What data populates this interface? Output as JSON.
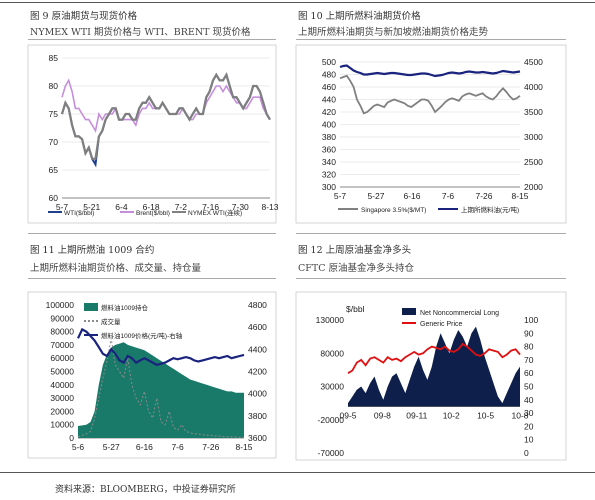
{
  "figures": [
    {
      "title": "图 9  原油期货与现货价格",
      "subtitle": "NYMEX WTI 期货价格与 WTI、BRENT 现货价格"
    },
    {
      "title": "图 10  上期所燃料油期货价格",
      "subtitle": "上期所燃料油期货与新加坡燃油期货价格走势"
    },
    {
      "title": "图 11  上期所燃油 1009 合约",
      "subtitle": "上期所燃料油期货价格、成交量、持仓量"
    },
    {
      "title": "图 12  上周原油基金净多头",
      "subtitle": "CFTC  原油基金净多头持仓"
    }
  ],
  "footer": "资料来源：BLOOMBERG，中投证券研究所",
  "chart_data": [
    {
      "type": "line",
      "ylim": [
        60,
        85
      ],
      "yticks": [
        60,
        65,
        70,
        75,
        80,
        85
      ],
      "xticks": [
        "5-7",
        "5-21",
        "6-4",
        "6-18",
        "7-2",
        "7-16",
        "7-30",
        "8-13"
      ],
      "grid": true,
      "legend": "bottom",
      "colors": [
        "#1f3f8f",
        "#c58fdc",
        "#7f7f7f"
      ],
      "series": [
        {
          "name": "WTI($/bbl)",
          "values": [
            75,
            77,
            76,
            73,
            71,
            71,
            70.5,
            68,
            69,
            67,
            66,
            71,
            72,
            74,
            75,
            76,
            76,
            74,
            74,
            75,
            75,
            74,
            74,
            76,
            77,
            77,
            78,
            77,
            76,
            76,
            77,
            76,
            75,
            75,
            75,
            76,
            76,
            75,
            74,
            75,
            76,
            75,
            75,
            78,
            79,
            81,
            82,
            81,
            81,
            82,
            80,
            78,
            78,
            77,
            76,
            77,
            78,
            80,
            80,
            79,
            77,
            75,
            74
          ]
        },
        {
          "name": "Brent($/bbl)",
          "values": [
            78,
            80,
            81,
            79,
            76,
            76,
            75,
            74,
            74,
            73,
            72,
            75,
            74,
            75,
            75,
            75,
            76,
            74,
            74,
            74,
            74,
            74,
            73,
            75,
            76,
            76,
            77,
            76,
            76,
            76,
            77,
            76,
            75,
            75,
            75,
            75,
            76,
            75,
            74,
            74,
            75,
            75,
            75,
            77,
            78,
            79,
            80,
            80,
            79,
            80,
            79,
            78,
            77,
            77,
            76,
            76,
            77,
            78,
            78,
            78,
            76,
            75,
            74
          ]
        },
        {
          "name": "NYMEX WTI(连续)",
          "values": [
            75,
            77,
            76,
            73,
            71,
            71,
            70.5,
            68,
            69,
            67,
            67,
            71,
            72,
            74,
            75,
            76,
            76,
            74,
            74,
            75,
            75,
            74,
            74,
            76,
            77,
            77,
            78,
            77,
            76,
            76,
            77,
            76,
            75,
            75,
            75,
            76,
            76,
            75,
            74,
            75,
            76,
            75,
            75,
            78,
            79,
            81,
            82,
            81,
            81,
            82,
            80,
            78,
            78,
            77,
            76,
            77,
            78,
            80,
            80,
            79,
            77,
            75,
            74
          ]
        }
      ]
    },
    {
      "type": "line",
      "ylim": [
        300,
        500
      ],
      "yticks": [
        300,
        320,
        340,
        360,
        380,
        400,
        420,
        440,
        460,
        480,
        500
      ],
      "y2lim": [
        2000,
        4500
      ],
      "y2ticks": [
        2000,
        2500,
        3000,
        3500,
        4000,
        4500
      ],
      "xticks": [
        "5-7",
        "5-27",
        "6-16",
        "7-6",
        "7-26",
        "8-15"
      ],
      "grid": true,
      "legend": "bottom",
      "colors": [
        "#808080",
        "#1a237e"
      ],
      "series": [
        {
          "name": "Singapore 3.5%($/MT)",
          "axis": "left",
          "values": [
            474,
            476,
            478,
            470,
            460,
            440,
            430,
            418,
            420,
            425,
            430,
            432,
            430,
            428,
            435,
            438,
            440,
            438,
            436,
            434,
            430,
            428,
            432,
            436,
            440,
            440,
            438,
            430,
            420,
            425,
            430,
            436,
            440,
            442,
            440,
            438,
            445,
            448,
            450,
            448,
            446,
            448,
            450,
            445,
            442,
            440,
            445,
            452,
            458,
            452,
            445,
            440,
            442,
            446
          ]
        },
        {
          "name": "上期所燃料油(元/吨)",
          "axis": "right",
          "values": [
            4400,
            4420,
            4430,
            4380,
            4330,
            4300,
            4280,
            4250,
            4250,
            4260,
            4270,
            4280,
            4270,
            4260,
            4270,
            4280,
            4280,
            4270,
            4260,
            4250,
            4240,
            4240,
            4250,
            4260,
            4270,
            4270,
            4260,
            4240,
            4220,
            4230,
            4240,
            4260,
            4280,
            4290,
            4280,
            4270,
            4280,
            4300,
            4310,
            4300,
            4290,
            4290,
            4300,
            4290,
            4280,
            4270,
            4280,
            4300,
            4320,
            4310,
            4300,
            4290,
            4300,
            4310
          ]
        }
      ]
    },
    {
      "type": "area",
      "ylim": [
        0,
        100000
      ],
      "yticks": [
        0,
        10000,
        20000,
        30000,
        40000,
        50000,
        60000,
        70000,
        80000,
        90000,
        100000
      ],
      "y2lim": [
        3600,
        4800
      ],
      "y2ticks": [
        3600,
        3800,
        4000,
        4200,
        4400,
        4600,
        4800
      ],
      "xticks": [
        "5-6",
        "5-27",
        "6-16",
        "7-6",
        "7-26",
        "8-15"
      ],
      "legend": "top-left",
      "colors": [
        "#1a7a6a",
        "#8a8a8a",
        "#1a237e"
      ],
      "series": [
        {
          "name": "燃料油1009持仓",
          "axis": "left",
          "values": [
            9000,
            9500,
            10000,
            12000,
            20000,
            40000,
            55000,
            63000,
            68000,
            70000,
            71000,
            72000,
            70000,
            69000,
            68000,
            67000,
            66000,
            64000,
            62000,
            60000,
            58000,
            56000,
            54000,
            52000,
            50000,
            48000,
            46000,
            44000,
            43000,
            42000,
            41000,
            40000,
            39000,
            38000,
            37000,
            36000,
            35000,
            35000,
            34000,
            34000,
            34000
          ]
        },
        {
          "name": "成交量",
          "axis": "left",
          "values": [
            1000,
            2000,
            3000,
            5000,
            15000,
            30000,
            45000,
            58000,
            75000,
            55000,
            50000,
            45000,
            60000,
            40000,
            30000,
            25000,
            35000,
            20000,
            15000,
            30000,
            12000,
            10000,
            20000,
            8000,
            6000,
            10000,
            5000,
            4000,
            3000,
            3000,
            2500,
            2000,
            2000,
            1500,
            1500,
            1000,
            1000,
            800,
            800,
            600,
            500
          ]
        },
        {
          "name": "燃料油1009价格(元/吨)-右轴",
          "axis": "right",
          "values": [
            4500,
            4580,
            4560,
            4520,
            4480,
            4420,
            4360,
            4340,
            4400,
            4360,
            4300,
            4280,
            4340,
            4320,
            4280,
            4300,
            4320,
            4300,
            4280,
            4260,
            4270,
            4280,
            4300,
            4320,
            4310,
            4320,
            4330,
            4320,
            4300,
            4290,
            4300,
            4310,
            4320,
            4330,
            4320,
            4330,
            4340,
            4320,
            4330,
            4340,
            4350
          ]
        }
      ]
    },
    {
      "type": "area",
      "yunit": "$/bbl",
      "ylim": [
        -70000,
        130000
      ],
      "yticks": [
        -70000,
        -20000,
        30000,
        80000,
        130000
      ],
      "ytick_labels": [
        "-70000",
        "-20000",
        "30000",
        "80000",
        "130000"
      ],
      "y2lim": [
        0,
        100
      ],
      "y2ticks": [
        0,
        10,
        20,
        30,
        40,
        50,
        60,
        70,
        80,
        90,
        100
      ],
      "xticks": [
        "09-5",
        "09-8",
        "09-11",
        "10-2",
        "10-5",
        "10-8"
      ],
      "legend": "top",
      "colors": [
        "#0d1f4a",
        "#e01010"
      ],
      "series": [
        {
          "name": "Net Noncommercial Long",
          "axis": "left",
          "values": [
            5000,
            15000,
            25000,
            30000,
            20000,
            35000,
            45000,
            25000,
            10000,
            30000,
            45000,
            50000,
            35000,
            20000,
            40000,
            60000,
            75000,
            55000,
            40000,
            60000,
            90000,
            110000,
            95000,
            80000,
            100000,
            115000,
            105000,
            90000,
            110000,
            120000,
            100000,
            75000,
            55000,
            35000,
            15000,
            5000,
            20000,
            35000,
            50000,
            60000
          ]
        },
        {
          "name": "Generic Price",
          "axis": "right",
          "values": [
            60,
            62,
            68,
            70,
            66,
            71,
            72,
            70,
            68,
            72,
            70,
            71,
            69,
            72,
            74,
            76,
            74,
            75,
            78,
            80,
            79,
            78,
            80,
            77,
            76,
            78,
            82,
            80,
            77,
            74,
            73,
            75,
            78,
            77,
            76,
            72,
            74,
            77,
            78,
            74
          ]
        }
      ]
    }
  ]
}
